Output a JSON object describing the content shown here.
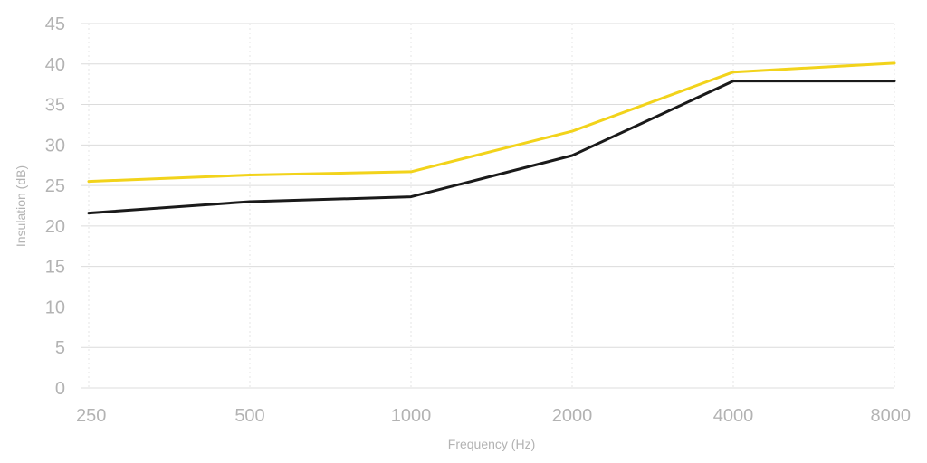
{
  "chart_data": {
    "type": "line",
    "title": "",
    "xlabel": "Frequency (Hz)",
    "ylabel": "Insulation (dB)",
    "x": [
      "250",
      "500",
      "1000",
      "2000",
      "4000",
      "8000"
    ],
    "ylim": [
      0,
      45
    ],
    "yticks": [
      "0",
      "5",
      "10",
      "15",
      "20",
      "25",
      "30",
      "35",
      "40",
      "45"
    ],
    "grid": true,
    "legend": "none",
    "series": [
      {
        "color": "#f2d31b",
        "values": [
          25.5,
          26.3,
          26.7,
          31.7,
          39.0,
          40.1
        ]
      },
      {
        "color": "#1a1a1a",
        "values": [
          21.6,
          23.0,
          23.6,
          28.7,
          37.9,
          37.9
        ]
      }
    ]
  }
}
